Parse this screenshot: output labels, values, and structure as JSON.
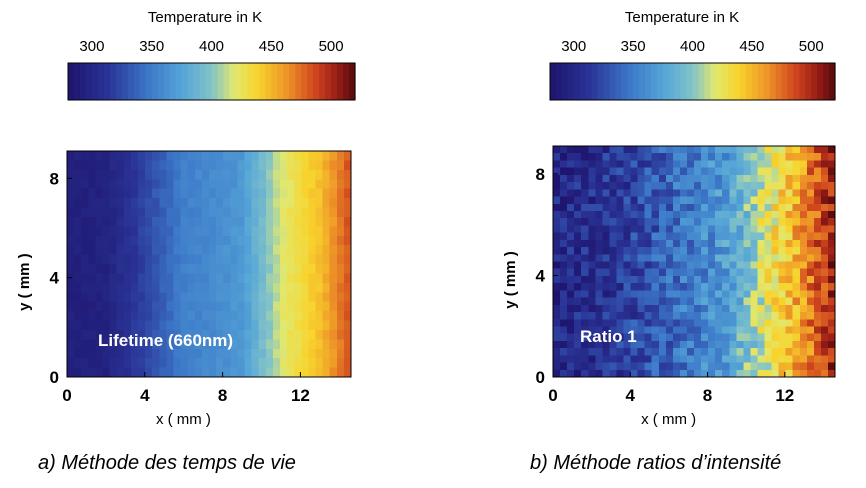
{
  "figure_captions": [
    "a) Méthode des temps de vie",
    "b) Méthode ratios d’intensité"
  ],
  "chart_data": [
    {
      "type": "heatmap",
      "panel": "a",
      "overlay_label": "Lifetime (660nm)",
      "xlabel": "x ( mm )",
      "ylabel": "y ( mm )",
      "xlim": [
        0,
        14.6
      ],
      "ylim": [
        0,
        9.1
      ],
      "xticks": [
        0,
        4,
        8,
        12
      ],
      "yticks": [
        0,
        4,
        8
      ],
      "grid_cols": 40,
      "grid_rows": 24,
      "profile_x_mm": [
        0,
        2,
        4,
        6,
        8,
        9,
        10,
        11,
        12,
        13,
        14,
        14.6
      ],
      "profile_temperature_K": [
        292,
        295,
        322,
        352,
        362,
        368,
        392,
        418,
        432,
        446,
        470,
        485
      ],
      "noise_K": 4,
      "colorbar": {
        "title": "Temperature in K",
        "ticks": [
          300,
          350,
          400,
          450,
          500
        ],
        "range": [
          280,
          520
        ]
      }
    },
    {
      "type": "heatmap",
      "panel": "b",
      "overlay_label": "Ratio 1",
      "xlabel": "x ( mm )",
      "ylabel": "y ( mm )",
      "xlim": [
        0,
        14.6
      ],
      "ylim": [
        0,
        9.1
      ],
      "xticks": [
        0,
        4,
        8,
        12
      ],
      "yticks": [
        0,
        4,
        8
      ],
      "grid_cols": 40,
      "grid_rows": 32,
      "profile_x_mm": [
        0,
        2,
        4,
        6,
        8,
        9,
        10,
        11,
        12,
        13,
        14,
        14.6
      ],
      "profile_temperature_K": [
        300,
        305,
        318,
        340,
        358,
        370,
        395,
        420,
        440,
        462,
        490,
        505
      ],
      "noise_K": 22,
      "colorbar": {
        "title": "Temperature in K",
        "ticks": [
          300,
          350,
          400,
          450,
          500
        ],
        "range": [
          280,
          520
        ]
      }
    }
  ]
}
